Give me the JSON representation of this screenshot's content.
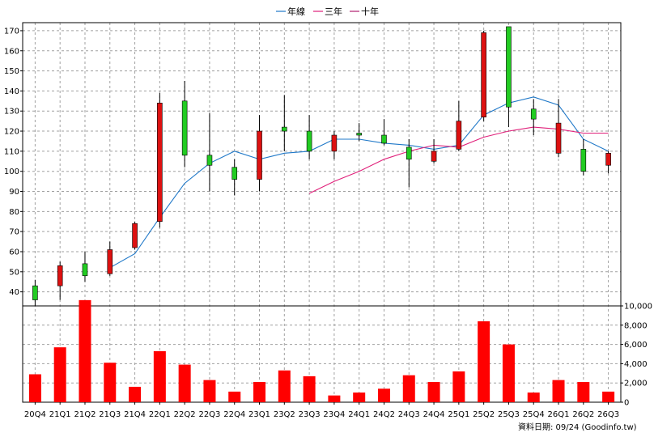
{
  "legend": [
    {
      "label": "年線",
      "color": "#1f78c8"
    },
    {
      "label": "三年",
      "color": "#e0207a"
    },
    {
      "label": "十年",
      "color": "#b02070"
    }
  ],
  "footer": {
    "label": "資料日期: 09/24  (Goodinfo.tw)"
  },
  "chart_data": {
    "type": "candlestick-with-volume",
    "categories": [
      "20Q4",
      "21Q1",
      "21Q2",
      "21Q3",
      "21Q4",
      "22Q1",
      "22Q2",
      "22Q3",
      "22Q4",
      "23Q1",
      "23Q2",
      "23Q3",
      "23Q4",
      "24Q1",
      "24Q2",
      "24Q3",
      "24Q4",
      "25Q1",
      "25Q2",
      "25Q3",
      "25Q4",
      "26Q1",
      "26Q2",
      "26Q3"
    ],
    "price_axis": {
      "ylim": [
        33,
        174
      ],
      "ticks": [
        40,
        50,
        60,
        70,
        80,
        90,
        100,
        110,
        120,
        130,
        140,
        150,
        160,
        170
      ]
    },
    "volume_axis": {
      "ylim": [
        0,
        10000
      ],
      "ticks": [
        0,
        2000,
        4000,
        6000,
        8000,
        10000
      ],
      "tick_labels": [
        "0",
        "2,000",
        "4,000",
        "6,000",
        "8,000",
        "10,000"
      ]
    },
    "ohlc": [
      {
        "open": 36,
        "high": 46,
        "low": 33,
        "close": 43
      },
      {
        "open": 53,
        "high": 55,
        "low": 36,
        "close": 43
      },
      {
        "open": 48,
        "high": 60,
        "low": 45,
        "close": 54
      },
      {
        "open": 61,
        "high": 65,
        "low": 48,
        "close": 49
      },
      {
        "open": 74,
        "high": 75,
        "low": 61,
        "close": 62
      },
      {
        "open": 134,
        "high": 139,
        "low": 72,
        "close": 75
      },
      {
        "open": 108,
        "high": 145,
        "low": 102,
        "close": 135
      },
      {
        "open": 103,
        "high": 129,
        "low": 90,
        "close": 108
      },
      {
        "open": 96,
        "high": 106,
        "low": 88,
        "close": 102
      },
      {
        "open": 120,
        "high": 128,
        "low": 90,
        "close": 96
      },
      {
        "open": 120,
        "high": 138,
        "low": 110,
        "close": 122
      },
      {
        "open": 110,
        "high": 128,
        "low": 106,
        "close": 120
      },
      {
        "open": 118,
        "high": 120,
        "low": 106,
        "close": 110
      },
      {
        "open": 118,
        "high": 124,
        "low": 115,
        "close": 119
      },
      {
        "open": 114,
        "high": 126,
        "low": 113,
        "close": 118
      },
      {
        "open": 106,
        "high": 116,
        "low": 92,
        "close": 112
      },
      {
        "open": 110,
        "high": 116,
        "low": 104,
        "close": 105
      },
      {
        "open": 125,
        "high": 135,
        "low": 110,
        "close": 111
      },
      {
        "open": 169,
        "high": 170,
        "low": 125,
        "close": 127
      },
      {
        "open": 132,
        "high": 172,
        "low": 122,
        "close": 172
      },
      {
        "open": 126,
        "high": 136,
        "low": 118,
        "close": 131
      },
      {
        "open": 124,
        "high": 136,
        "low": 107,
        "close": 109
      },
      {
        "open": 100,
        "high": 116,
        "low": 98,
        "close": 111
      },
      {
        "open": 109,
        "high": 110,
        "low": 99,
        "close": 103
      }
    ],
    "series": [
      {
        "name": "年線",
        "values": [
          null,
          null,
          null,
          52,
          59,
          77,
          94,
          104,
          110,
          106,
          109,
          110,
          116,
          116,
          114,
          113,
          111,
          113,
          128,
          134,
          137,
          133,
          116,
          110
        ]
      },
      {
        "name": "三年",
        "values": [
          null,
          null,
          null,
          null,
          null,
          null,
          null,
          null,
          null,
          null,
          null,
          89,
          95,
          100,
          106,
          110,
          113,
          112,
          117,
          120,
          122,
          121,
          119,
          119
        ]
      }
    ],
    "volume": [
      2900,
      5700,
      10600,
      4100,
      1600,
      5300,
      3900,
      2300,
      1100,
      2100,
      3300,
      2700,
      700,
      1000,
      1400,
      2800,
      2100,
      3200,
      8400,
      6000,
      1000,
      2300,
      2100,
      1100
    ]
  }
}
